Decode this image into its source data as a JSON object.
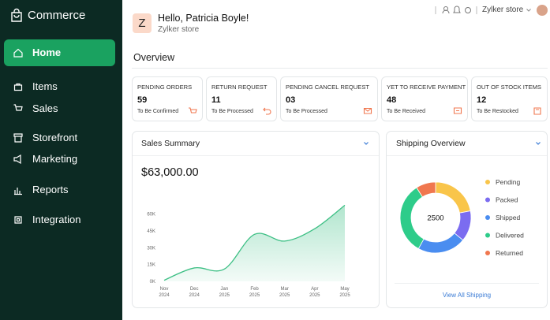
{
  "sidebar": {
    "brand": "Commerce",
    "nav": [
      "Home",
      "Items",
      "Sales",
      "Storefront",
      "Marketing",
      "Reports",
      "Integration"
    ]
  },
  "header": {
    "avatar": "Z",
    "greeting": "Hello, Patricia Boyle!",
    "store": "Zylker store",
    "store_menu": "Zylker store"
  },
  "overview": {
    "title": "Overview",
    "cards": [
      {
        "label": "PENDING ORDERS",
        "value": 59,
        "note": "To Be Confirmed"
      },
      {
        "label": "RETURN REQUEST",
        "value": 11,
        "note": "To Be Processed"
      },
      {
        "label": "PENDING CANCEL REQUEST",
        "value": "03",
        "note": "To Be Processed"
      },
      {
        "label": "YET TO RECEIVE PAYMENT",
        "value": 48,
        "note": "To Be Received"
      },
      {
        "label": "OUT OF STOCK ITEMS",
        "value": 12,
        "note": "To Be Restocked"
      }
    ]
  },
  "sales_summary": {
    "title": "Sales Summary",
    "total": "$63,000.00",
    "chart": {
      "type": "area",
      "categories": [
        "Nov 2024",
        "Dec 2024",
        "Jan 2025",
        "Feb 2025",
        "Mar 2025",
        "Apr 2025",
        "May 2025"
      ],
      "values": [
        1000,
        12000,
        11000,
        42000,
        36000,
        47000,
        68000
      ],
      "color": "#3cbf84",
      "ylim": [
        0,
        76000
      ],
      "yticks": [
        {
          "value": 0,
          "label": "0K"
        },
        {
          "value": 15000,
          "label": "15K"
        },
        {
          "value": 30000,
          "label": "30K"
        },
        {
          "value": 45000,
          "label": "45K"
        },
        {
          "value": 60000,
          "label": "60K"
        }
      ]
    }
  },
  "shipping_overview": {
    "title": "Shipping Overview",
    "chart": {
      "type": "donut",
      "total": 2500,
      "categories": [
        "Pending",
        "Packed",
        "Shipped",
        "Delivered",
        "Returned"
      ],
      "values": [
        550,
        350,
        550,
        825,
        225
      ],
      "colors": [
        "#f9c54a",
        "#7b6cf0",
        "#4a8df0",
        "#2ecc8a",
        "#f0774f"
      ]
    },
    "link": "View All Shipping"
  }
}
